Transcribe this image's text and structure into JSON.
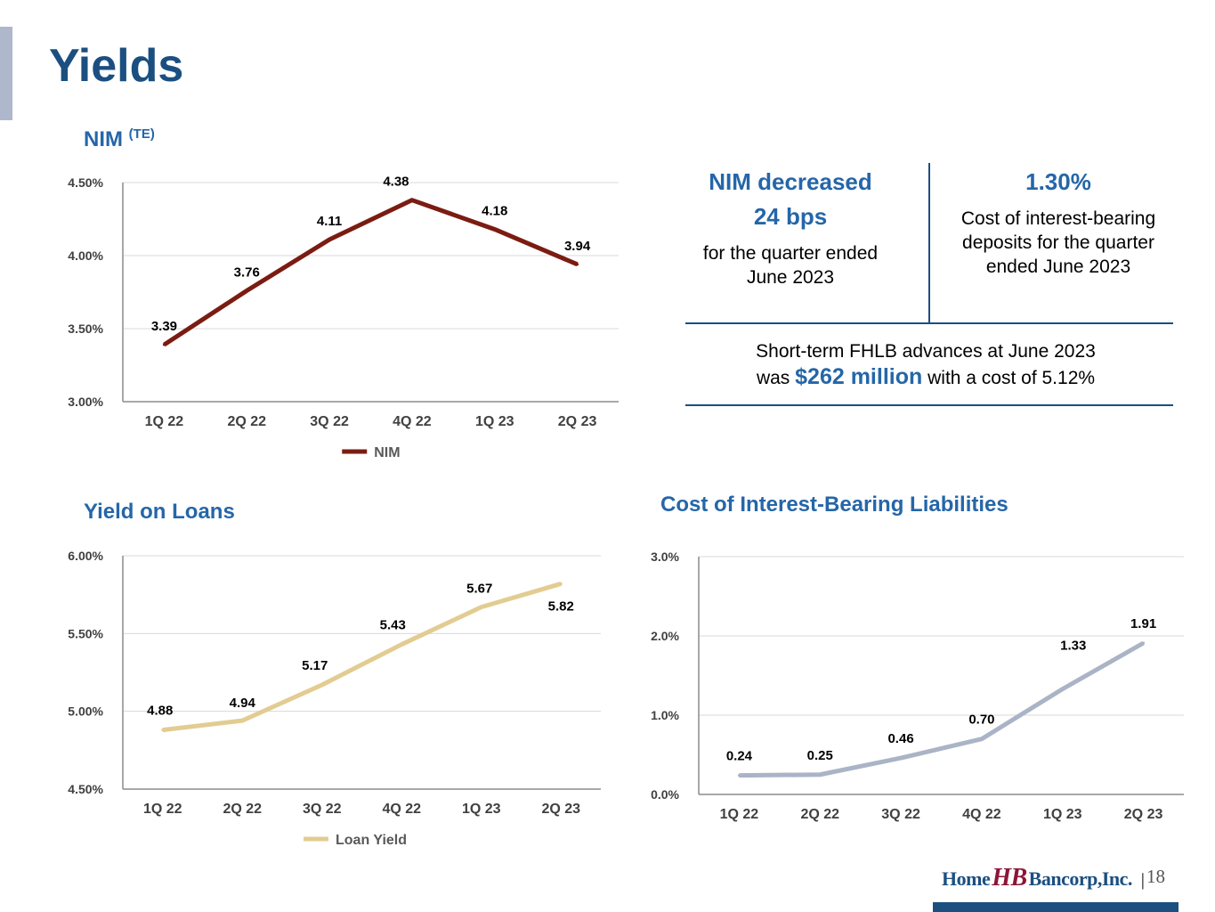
{
  "page": {
    "title": "Yields",
    "page_number": "18",
    "logo_parts": [
      "Home",
      "HB",
      "Bancorp,Inc."
    ]
  },
  "colors": {
    "title": "#1b4f80",
    "accent": "#2566a8",
    "nim_line": "#7b1c12",
    "loan_line": "#e2cc91",
    "cost_line": "#aab4c6"
  },
  "info": {
    "left_heading": "NIM decreased",
    "left_value": "24 bps",
    "left_text": "for the quarter ended June 2023",
    "right_value": "1.30%",
    "right_text": "Cost of interest-bearing deposits for the quarter ended June 2023",
    "bottom_line1": "Short-term FHLB advances at June 2023",
    "bottom_pre": "was",
    "bottom_amount": "$262 million",
    "bottom_post": "with a cost of 5.12%"
  },
  "chart_data": [
    {
      "id": "nim",
      "type": "line",
      "title": "NIM",
      "title_superscript": "(TE)",
      "categories": [
        "1Q 22",
        "2Q 22",
        "3Q 22",
        "4Q 22",
        "1Q 23",
        "2Q 23"
      ],
      "series": [
        {
          "name": "NIM",
          "values": [
            3.39,
            3.76,
            4.11,
            4.38,
            4.18,
            3.94
          ]
        }
      ],
      "data_labels": [
        "3.39",
        "3.76",
        "4.11",
        "4.38",
        "4.18",
        "3.94"
      ],
      "ylim": [
        3.0,
        4.5
      ],
      "y_ticks": [
        3.0,
        3.5,
        4.0,
        4.5
      ],
      "y_tick_labels": [
        "3.00%",
        "3.50%",
        "4.00%",
        "4.50%"
      ],
      "legend": "bottom-center",
      "grid": true
    },
    {
      "id": "loans",
      "type": "line",
      "title": "Yield on Loans",
      "categories": [
        "1Q 22",
        "2Q 22",
        "3Q 22",
        "4Q 22",
        "1Q 23",
        "2Q 23"
      ],
      "series": [
        {
          "name": "Loan Yield",
          "values": [
            4.88,
            4.94,
            5.17,
            5.43,
            5.67,
            5.82
          ]
        }
      ],
      "data_labels": [
        "4.88",
        "4.94",
        "5.17",
        "5.43",
        "5.67",
        "5.82"
      ],
      "ylim": [
        4.5,
        6.0
      ],
      "y_ticks": [
        4.5,
        5.0,
        5.5,
        6.0
      ],
      "y_tick_labels": [
        "4.50%",
        "5.00%",
        "5.50%",
        "6.00%"
      ],
      "legend": "bottom-center",
      "grid": true
    },
    {
      "id": "cost",
      "type": "line",
      "title": "Cost of Interest-Bearing Liabilities",
      "categories": [
        "1Q 22",
        "2Q 22",
        "3Q 22",
        "4Q 22",
        "1Q 23",
        "2Q 23"
      ],
      "series": [
        {
          "name": "Cost of Interest-Bearing Liabilities",
          "values": [
            0.24,
            0.25,
            0.46,
            0.7,
            1.33,
            1.91
          ]
        }
      ],
      "data_labels": [
        "0.24",
        "0.25",
        "0.46",
        "0.70",
        "1.33",
        "1.91"
      ],
      "ylim": [
        0.0,
        3.0
      ],
      "y_ticks": [
        0.0,
        1.0,
        2.0,
        3.0
      ],
      "y_tick_labels": [
        "0.0%",
        "1.0%",
        "2.0%",
        "3.0%"
      ],
      "legend": "none",
      "grid": true
    }
  ]
}
